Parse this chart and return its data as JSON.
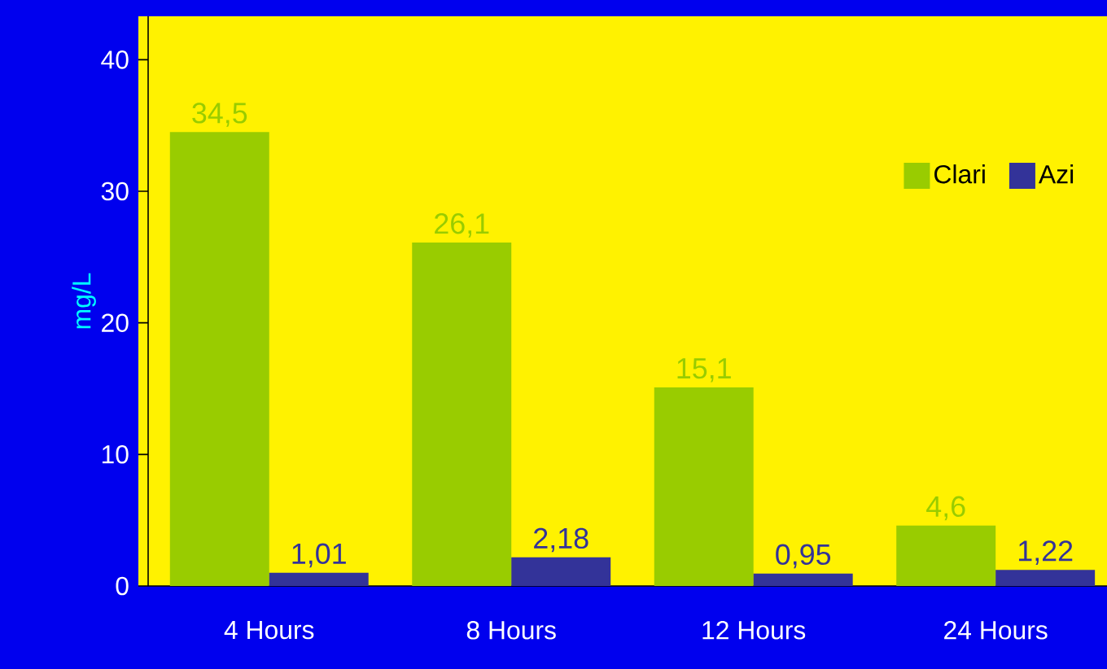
{
  "chart_data": {
    "type": "bar",
    "ylabel": "mg/L",
    "categories": [
      "4 Hours",
      "8 Hours",
      "12 Hours",
      "24 Hours"
    ],
    "series": [
      {
        "name": "Clari",
        "color": "#99cc00",
        "values": [
          34.5,
          26.1,
          15.1,
          4.6
        ],
        "value_labels": [
          "34,5",
          "26,1",
          "15,1",
          "4,6"
        ]
      },
      {
        "name": "Azi",
        "color": "#333399",
        "values": [
          1.01,
          2.18,
          0.95,
          1.22
        ],
        "value_labels": [
          "1,01",
          "2,18",
          "0,95",
          "1,22"
        ]
      }
    ],
    "ylim": [
      0,
      43.3
    ],
    "yticks": [
      0,
      10,
      20,
      30,
      40
    ],
    "legend": "top right",
    "grid": false
  }
}
